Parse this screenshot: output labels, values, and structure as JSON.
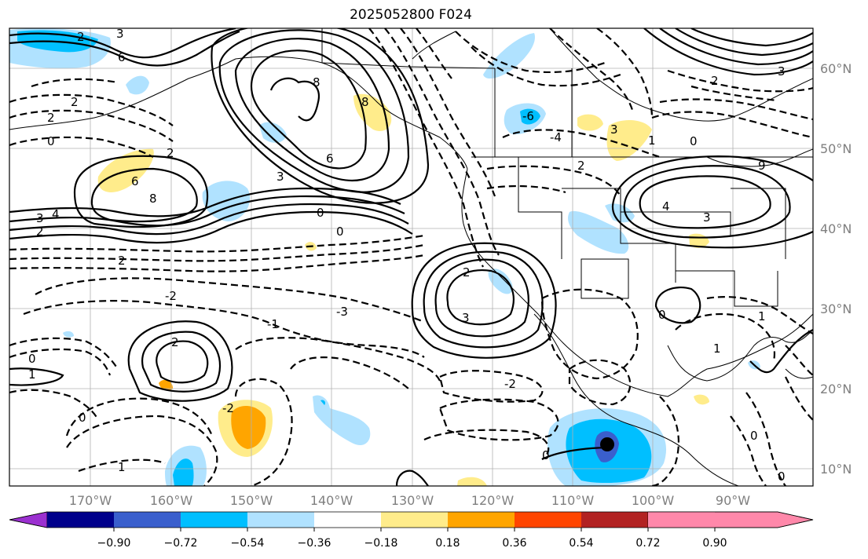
{
  "title": "2025052800 F024",
  "longitude_labels": [
    "170°W",
    "160°W",
    "150°W",
    "140°W",
    "130°W",
    "120°W",
    "110°W",
    "100°W",
    "90°W"
  ],
  "latitude_labels": [
    "60°N",
    "50°N",
    "40°N",
    "30°N",
    "20°N",
    "10°N"
  ],
  "colorbar": {
    "colors": [
      "#9b30d0",
      "#00008b",
      "#3a5fcd",
      "#00bfff",
      "#b0e2ff",
      "#ffffff",
      "#ffec8b",
      "#ffa500",
      "#ff4500",
      "#b22222",
      "#ff88aa"
    ],
    "tick_labels": [
      "−0.90",
      "−0.72",
      "−0.54",
      "−0.36",
      "−0.18",
      "0.18",
      "0.36",
      "0.54",
      "0.72",
      "0.90"
    ]
  },
  "contour_labels": [
    "2",
    "3",
    "6",
    "8",
    "2",
    "2",
    "0",
    "8",
    "-6",
    "-4",
    "2",
    "3",
    "8",
    "6",
    "3",
    "2",
    "6",
    "4",
    "3",
    "2",
    "0",
    "0",
    "2",
    "4",
    "3",
    "1",
    "0",
    "9",
    "2",
    "3",
    "-2",
    "-3",
    "2",
    "3",
    "2",
    "0",
    "1",
    "-2",
    "0",
    "1",
    "0",
    "-1",
    "1",
    "-2",
    "1",
    "0",
    "0",
    "0"
  ]
}
